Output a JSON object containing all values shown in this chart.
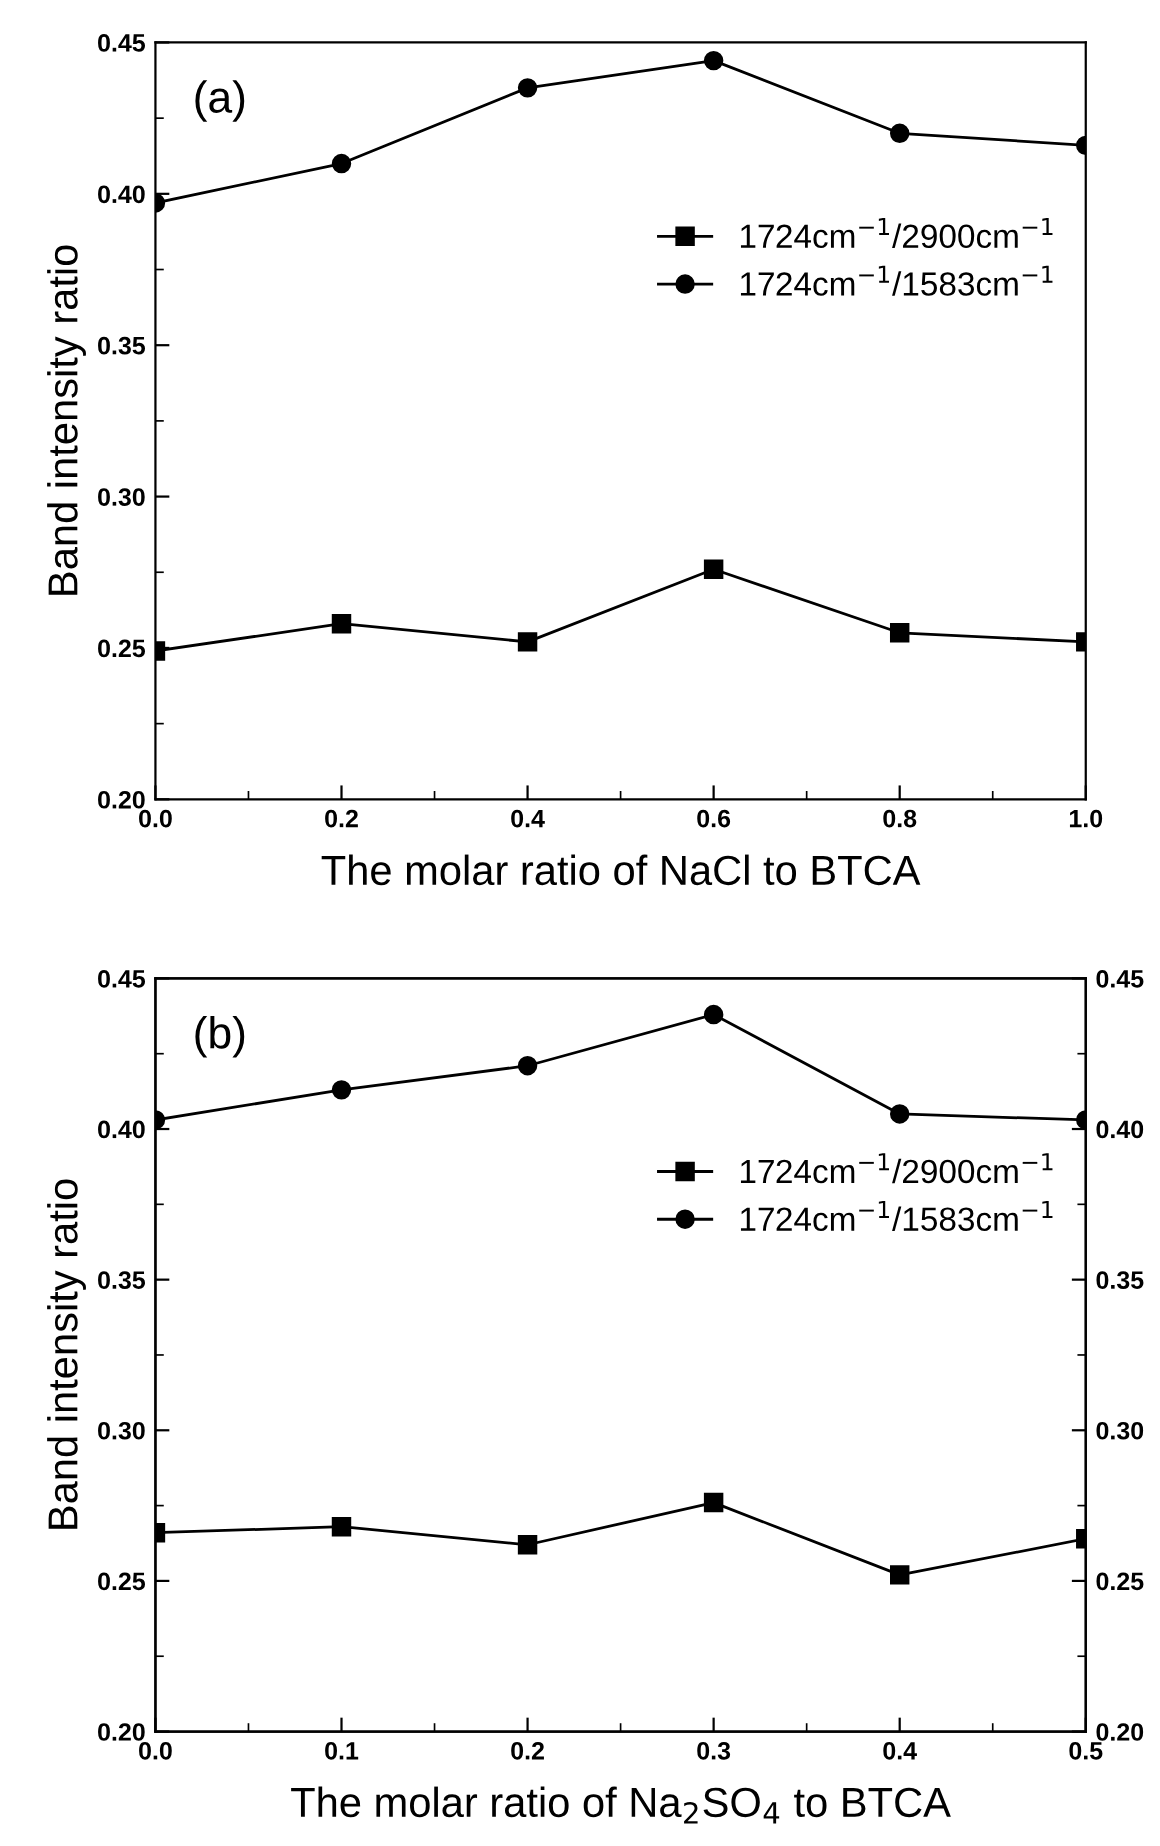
{
  "chart_data": [
    {
      "type": "line",
      "xlabel": "The molar ratio of NaCl to BTCA",
      "ylabel": "Band intensity ratio",
      "annotations": [
        "(a)"
      ],
      "x": [
        0.0,
        0.2,
        0.4,
        0.6,
        0.8,
        1.0
      ],
      "series": [
        {
          "name": "1724cm$^{−1}$/2900cm$^{−1}$",
          "color": "#000000",
          "marker": "square",
          "values": [
            0.249,
            0.258,
            0.252,
            0.276,
            0.255,
            0.252
          ]
        },
        {
          "name": "1724cm$^{−1}$/1583cm$^{−1}$",
          "color": "#000000",
          "marker": "circle",
          "values": [
            0.397,
            0.41,
            0.435,
            0.444,
            0.42,
            0.416
          ]
        }
      ],
      "xlim": [
        0.0,
        1.0
      ],
      "xticks": [
        "0.0",
        0.2,
        0.4,
        0.6,
        0.8,
        "1.0"
      ],
      "ylim": [
        0.2,
        0.45
      ],
      "yticks": [
        "0.20",
        0.25,
        "0.30",
        0.35,
        "0.40",
        0.45
      ],
      "legend": "top right",
      "grid": false,
      "line_style": "solid"
    },
    {
      "type": "line",
      "xlabel": "The molar ratio of Na$_{2}$SO$_{4}$ to BTCA",
      "ylabel": "Band intensity ratio",
      "annotations": [
        "(b)"
      ],
      "x": [
        0.0,
        0.1,
        0.2,
        0.3,
        0.4,
        0.5
      ],
      "series": [
        {
          "name": "1724cm$^{−1}$/2900cm$^{−1}$",
          "color": "#000000",
          "marker": "square",
          "values": [
            0.266,
            0.268,
            0.262,
            0.276,
            0.252,
            0.264
          ]
        },
        {
          "name": "1724cm$^{−1}$/1583cm$^{−1}$",
          "color": "#000000",
          "marker": "circle",
          "values": [
            0.403,
            0.413,
            0.421,
            0.438,
            0.405,
            0.403
          ]
        }
      ],
      "xlim": [
        0.0,
        0.5
      ],
      "xticks": [
        "0.0",
        0.1,
        0.2,
        0.3,
        0.4,
        0.5
      ],
      "ylim": [
        0.2,
        0.45
      ],
      "yticks": [
        "0.20",
        0.25,
        "0.30",
        0.35,
        "0.40",
        0.45
      ],
      "y2lim": [
        0.2,
        0.45
      ],
      "y2ticks": [
        "0.20",
        0.25,
        "0.30",
        0.35,
        "0.40",
        0.45
      ],
      "legend": "top right",
      "grid": false,
      "line_style": "solid"
    }
  ]
}
